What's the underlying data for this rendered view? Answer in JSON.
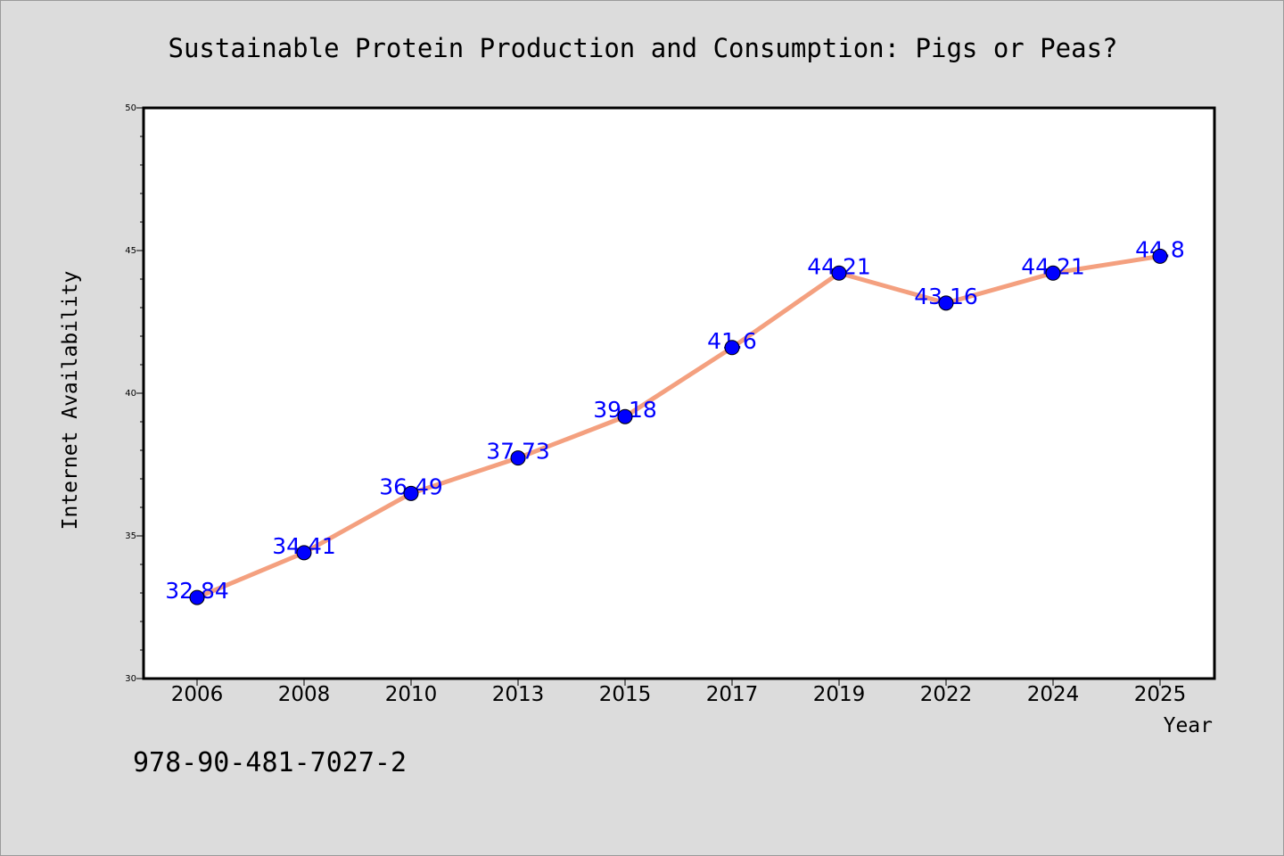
{
  "footer_code": "978-90-481-7027-2",
  "colors": {
    "background": "#dcdcdc",
    "plot_background": "#ffffff",
    "line": "#f4a07f",
    "marker": "#0000ff",
    "data_label": "#0000ff",
    "text": "#000000"
  },
  "chart_data": {
    "type": "line",
    "title": "Sustainable Protein Production and Consumption: Pigs or Peas?",
    "xlabel": "Year",
    "ylabel": "Internet Availability",
    "categories": [
      "2006",
      "2008",
      "2010",
      "2013",
      "2015",
      "2017",
      "2019",
      "2022",
      "2024",
      "2025"
    ],
    "series": [
      {
        "values": [
          32.84,
          34.41,
          36.49,
          37.73,
          39.18,
          41.6,
          44.21,
          43.16,
          44.21,
          44.8
        ],
        "labels": [
          "32.84",
          "34.41",
          "36.49",
          "37.73",
          "39.18",
          "41.6",
          "44.21",
          "43.16",
          "44.21",
          "44.8"
        ]
      }
    ],
    "ylim": [
      30,
      50
    ],
    "yticks": [
      "30",
      "35",
      "40",
      "45",
      "50"
    ],
    "grid": false,
    "legend": "none"
  }
}
